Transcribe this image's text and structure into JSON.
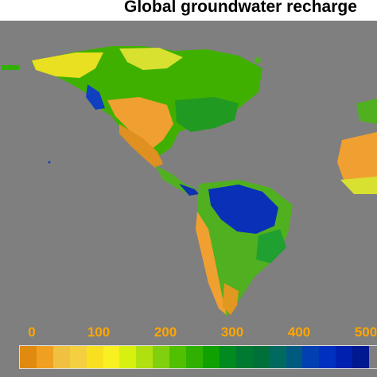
{
  "title": "Global groundwater recharge",
  "map": {
    "background": "#7f7f7f",
    "colors": {
      "very_low": "#e08a10",
      "low": "#f0b040",
      "mid_low": "#e8e020",
      "mid": "#a0d010",
      "mid_high": "#30b000",
      "high": "#008a30",
      "very_high": "#0030c0",
      "max": "#003090"
    },
    "regions": [
      "North America",
      "Central America",
      "South America",
      "Africa"
    ]
  },
  "legend": {
    "ticks": [
      "0",
      "100",
      "200",
      "300",
      "400",
      "500"
    ],
    "tick_values": [
      0,
      100,
      200,
      300,
      400,
      500
    ],
    "colors": [
      "#e08a10",
      "#f0a020",
      "#f0c040",
      "#f4d040",
      "#f8e020",
      "#f8f020",
      "#d8f010",
      "#b0e010",
      "#80d010",
      "#50c000",
      "#30b000",
      "#10a000",
      "#008a20",
      "#007a30",
      "#00703a",
      "#006a60",
      "#005a80",
      "#0040b0",
      "#0030c0",
      "#0020b0",
      "#001890",
      "#7f7f7f"
    ]
  }
}
